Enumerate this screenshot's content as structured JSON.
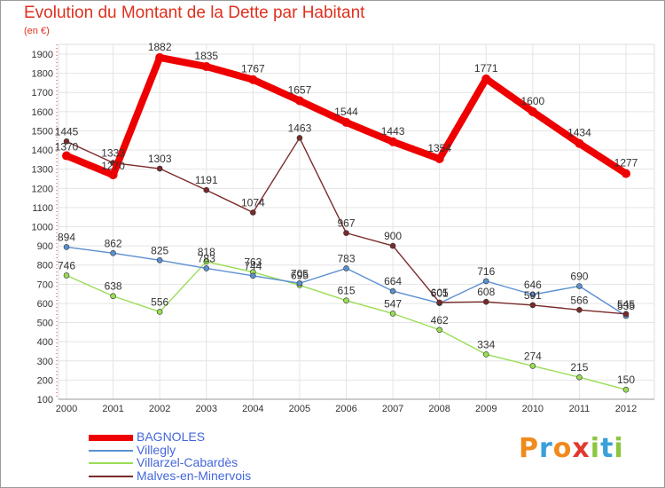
{
  "title": "Evolution du Montant de la Dette par Habitant",
  "subtitle": "(en €)",
  "logo": {
    "text": "Proxiti",
    "colors": [
      "#f08a1c",
      "#3aa0d8",
      "#f08a1c",
      "#e03a2f",
      "#8cc63f",
      "#3aa0d8",
      "#8cc63f"
    ]
  },
  "chart_data": {
    "type": "line",
    "x": [
      "2000",
      "2001",
      "2002",
      "2003",
      "2004",
      "2005",
      "2006",
      "2007",
      "2008",
      "2009",
      "2010",
      "2011",
      "2012"
    ],
    "ylim": [
      100,
      1900
    ],
    "yticks": [
      100,
      200,
      300,
      400,
      500,
      600,
      700,
      800,
      900,
      1000,
      1100,
      1200,
      1300,
      1400,
      1500,
      1600,
      1700,
      1800,
      1900
    ],
    "grid": true,
    "legend": "bottom-left",
    "series": [
      {
        "name": "BAGNOLES",
        "color": "#ee0000",
        "values": [
          1370,
          1270,
          1882,
          1835,
          1767,
          1657,
          1544,
          1443,
          1354,
          1771,
          1600,
          1434,
          1277
        ],
        "labels": [
          "1370",
          "1270",
          "1882",
          "1835",
          "1767",
          "1657",
          "1544",
          "1443",
          "1354",
          "1771",
          "1600",
          "1434",
          "1277"
        ]
      },
      {
        "name": "Villegly",
        "color": "#5b8fd0",
        "values": [
          894,
          862,
          825,
          783,
          744,
          705,
          783,
          664,
          601,
          716,
          646,
          690,
          535
        ],
        "labels": [
          "894",
          "862",
          "825",
          "783",
          "744",
          "705",
          "783",
          "664",
          "601",
          "716",
          "646",
          "690",
          "535"
        ]
      },
      {
        "name": "Villarzel-Cabardès",
        "color": "#99dd55",
        "values": [
          746,
          638,
          556,
          818,
          763,
          695,
          615,
          547,
          462,
          334,
          274,
          215,
          150
        ],
        "labels": [
          "746",
          "638",
          "556",
          "818",
          "763",
          "695",
          "615",
          "547",
          "462",
          "334",
          "274",
          "215",
          "150"
        ]
      },
      {
        "name": "Malves-en-Minervois",
        "color": "#7a2a2a",
        "values": [
          1445,
          1333,
          1303,
          1191,
          1074,
          1463,
          967,
          900,
          605,
          608,
          591,
          566,
          545
        ],
        "labels": [
          "1445",
          "1333",
          "1303",
          "1191",
          "1074",
          "1463",
          "967",
          "900",
          "605",
          "608",
          "591",
          "566",
          "545"
        ]
      }
    ]
  }
}
